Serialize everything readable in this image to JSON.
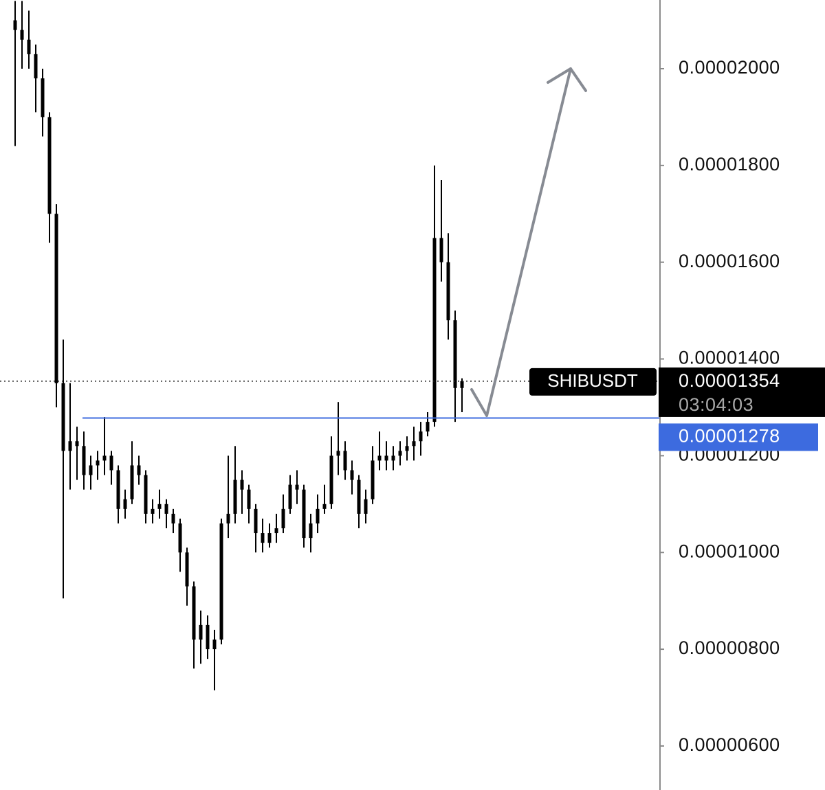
{
  "chart_data": {
    "type": "candlestick",
    "symbol": "SHIBUSDT",
    "countdown": "03:04:03",
    "current_price": {
      "value": 1.354e-05,
      "label": "0.00001354"
    },
    "level": {
      "value": 1.278e-05,
      "label": "0.00001278"
    },
    "color": "#000000",
    "level_color": "#3d6bdf",
    "ylim": [
      5.09e-06,
      2.142e-05
    ],
    "yticks": [
      {
        "value": 6e-06,
        "label": "0.00000600"
      },
      {
        "value": 8e-06,
        "label": "0.00000800"
      },
      {
        "value": 1e-05,
        "label": "0.00001000"
      },
      {
        "value": 1.2e-05,
        "label": "0.00001200"
      },
      {
        "value": 1.4e-05,
        "label": "0.00001400"
      },
      {
        "value": 1.6e-05,
        "label": "0.00001600"
      },
      {
        "value": 1.8e-05,
        "label": "0.00001800"
      },
      {
        "value": 2e-05,
        "label": "0.00002000"
      }
    ],
    "open": [
      2.1e-05,
      2.08e-05,
      2.06e-05,
      2.03e-05,
      1.98e-05,
      1.9e-05,
      1.7e-05,
      1.35e-05,
      1.21e-05,
      1.23e-05,
      1.22e-05,
      1.16e-05,
      1.18e-05,
      1.19e-05,
      1.2e-05,
      1.17e-05,
      1.09e-05,
      1.11e-05,
      1.18e-05,
      1.16e-05,
      1.08e-05,
      1.09e-05,
      1.1e-05,
      1.08e-05,
      1.06e-05,
      1e-05,
      9.3e-06,
      8.2e-06,
      8.5e-06,
      8e-06,
      8.2e-06,
      1.06e-05,
      1.08e-05,
      1.15e-05,
      1.13e-05,
      1.09e-05,
      1.04e-05,
      1.02e-05,
      1.04e-05,
      1.05e-05,
      1.09e-05,
      1.14e-05,
      1.13e-05,
      1.03e-05,
      1.06e-05,
      1.09e-05,
      1.1e-05,
      1.2e-05,
      1.21e-05,
      1.17e-05,
      1.15e-05,
      1.08e-05,
      1.11e-05,
      1.19e-05,
      1.2e-05,
      1.19e-05,
      1.2e-05,
      1.21e-05,
      1.22e-05,
      1.23e-05,
      1.25e-05,
      1.27e-05,
      1.65e-05,
      1.6e-05,
      1.48e-05,
      1.34e-05
    ],
    "high": [
      2.14e-05,
      2.14e-05,
      2.12e-05,
      2.05e-05,
      2e-05,
      1.91e-05,
      1.72e-05,
      1.44e-05,
      1.35e-05,
      1.26e-05,
      1.25e-05,
      1.2e-05,
      1.21e-05,
      1.28e-05,
      1.21e-05,
      1.18e-05,
      1.13e-05,
      1.23e-05,
      1.2e-05,
      1.17e-05,
      1.11e-05,
      1.13e-05,
      1.11e-05,
      1.09e-05,
      1.07e-05,
      1.01e-05,
      9.4e-06,
      8.8e-06,
      8.7e-06,
      8.4e-06,
      1.07e-05,
      1.2e-05,
      1.22e-05,
      1.17e-05,
      1.14e-05,
      1.1e-05,
      1.07e-05,
      1.06e-05,
      1.08e-05,
      1.12e-05,
      1.16e-05,
      1.17e-05,
      1.14e-05,
      1.08e-05,
      1.12e-05,
      1.14e-05,
      1.24e-05,
      1.311e-05,
      1.23e-05,
      1.19e-05,
      1.16e-05,
      1.13e-05,
      1.22e-05,
      1.25e-05,
      1.23e-05,
      1.22e-05,
      1.23e-05,
      1.24e-05,
      1.26e-05,
      1.27e-05,
      1.29e-05,
      1.8e-05,
      1.77e-05,
      1.66e-05,
      1.5e-05,
      1.36e-05
    ],
    "low": [
      1.84e-05,
      2e-05,
      2e-05,
      1.91e-05,
      1.86e-05,
      1.64e-05,
      1.3e-05,
      9.05e-06,
      1.13e-05,
      1.15e-05,
      1.13e-05,
      1.13e-05,
      1.15e-05,
      1.16e-05,
      1.14e-05,
      1.06e-05,
      1.07e-05,
      1.1e-05,
      1.14e-05,
      1.06e-05,
      1.06e-05,
      1.07e-05,
      1.05e-05,
      1.04e-05,
      9.6e-06,
      8.9e-06,
      7.6e-06,
      7.7e-06,
      7.8e-06,
      7.15e-06,
      8.1e-06,
      1.03e-05,
      1.06e-05,
      1.08e-05,
      1.06e-05,
      1e-05,
      1e-05,
      1.01e-05,
      1.02e-05,
      1.04e-05,
      1.08e-05,
      1.1e-05,
      1.01e-05,
      1e-05,
      1.04e-05,
      1.08e-05,
      1.09e-05,
      1.16e-05,
      1.15e-05,
      1.12e-05,
      1.05e-05,
      1.06e-05,
      1.1e-05,
      1.17e-05,
      1.17e-05,
      1.17e-05,
      1.18e-05,
      1.19e-05,
      1.19e-05,
      1.2e-05,
      1.24e-05,
      1.26e-05,
      1.56e-05,
      1.44e-05,
      1.27e-05,
      1.29e-05
    ],
    "close": [
      2.08e-05,
      2.06e-05,
      2.03e-05,
      1.98e-05,
      1.9e-05,
      1.7e-05,
      1.35e-05,
      1.21e-05,
      1.23e-05,
      1.22e-05,
      1.16e-05,
      1.18e-05,
      1.19e-05,
      1.2e-05,
      1.17e-05,
      1.09e-05,
      1.11e-05,
      1.18e-05,
      1.16e-05,
      1.08e-05,
      1.09e-05,
      1.1e-05,
      1.08e-05,
      1.06e-05,
      1e-05,
      9.3e-06,
      8.2e-06,
      8.5e-06,
      8e-06,
      8.2e-06,
      1.06e-05,
      1.08e-05,
      1.15e-05,
      1.13e-05,
      1.09e-05,
      1.04e-05,
      1.02e-05,
      1.04e-05,
      1.05e-05,
      1.09e-05,
      1.14e-05,
      1.13e-05,
      1.03e-05,
      1.06e-05,
      1.09e-05,
      1.1e-05,
      1.2e-05,
      1.21e-05,
      1.17e-05,
      1.15e-05,
      1.08e-05,
      1.11e-05,
      1.19e-05,
      1.2e-05,
      1.19e-05,
      1.2e-05,
      1.21e-05,
      1.22e-05,
      1.23e-05,
      1.25e-05,
      1.27e-05,
      1.65e-05,
      1.6e-05,
      1.48e-05,
      1.34e-05,
      1.354e-05
    ]
  }
}
